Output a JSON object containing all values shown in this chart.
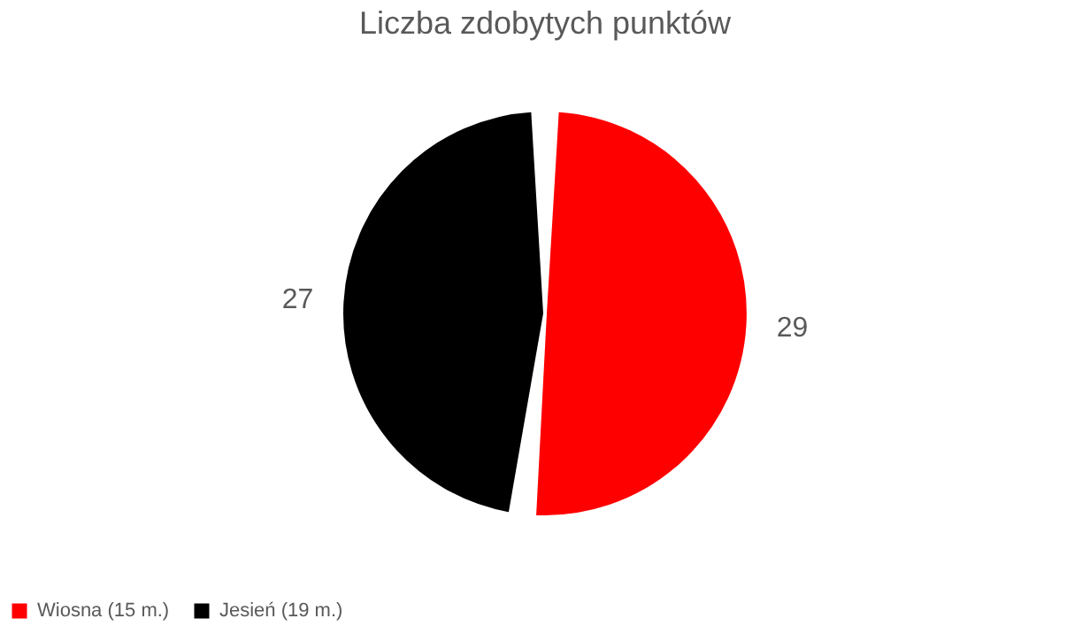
{
  "chart_data": {
    "type": "pie",
    "title": "Liczba zdobytych punktów",
    "categories": [
      "Wiosna (15 m.)",
      "Jesień (19 m.)"
    ],
    "values": [
      29,
      27
    ],
    "colors": [
      "#ff0000",
      "#000000"
    ],
    "data_labels": true,
    "legend": "bottom"
  }
}
